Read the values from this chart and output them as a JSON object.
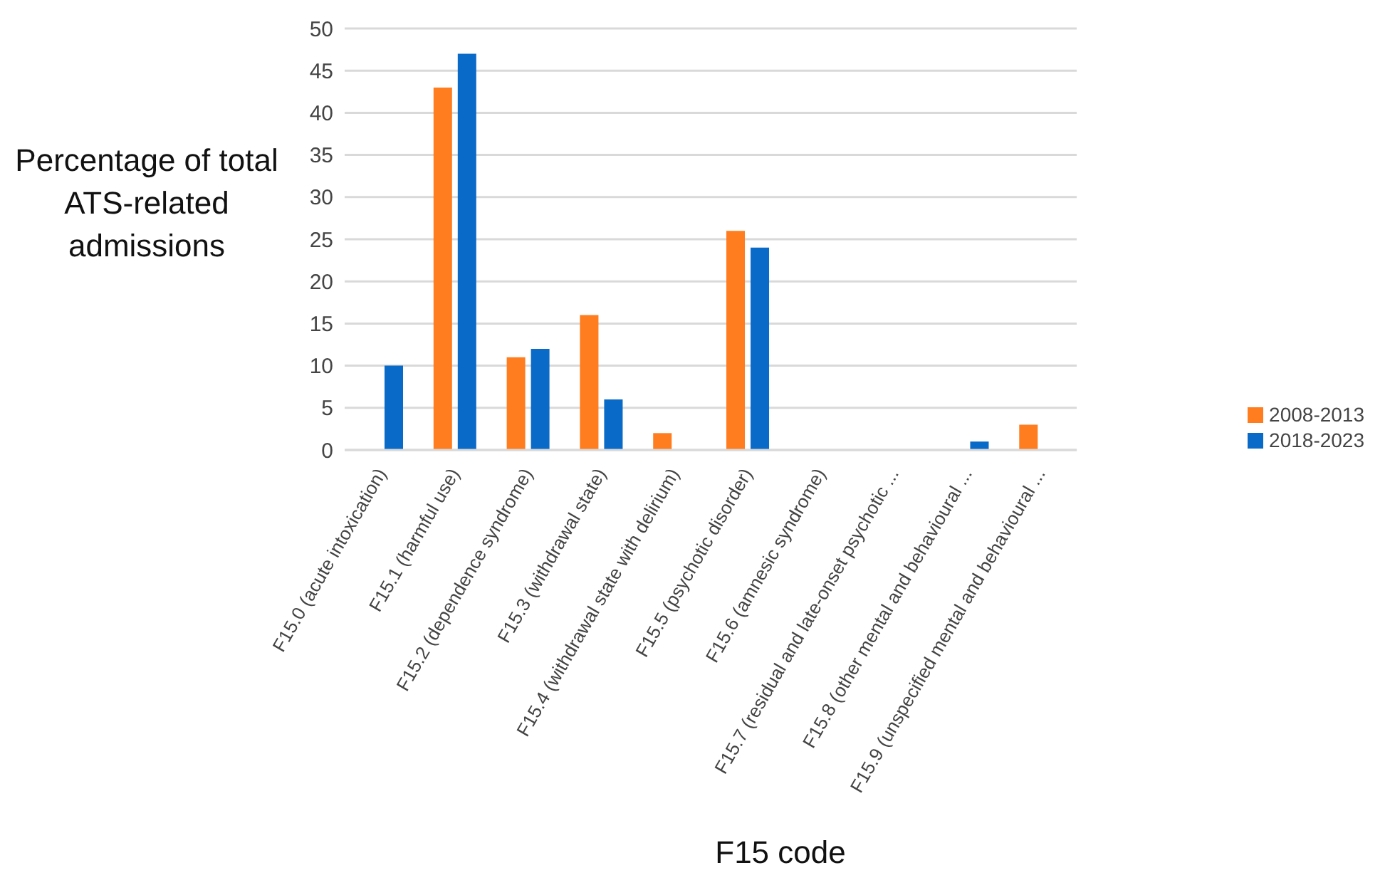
{
  "chart_data": {
    "type": "bar",
    "ylabel": "Percentage of total ATS-related admissions",
    "xlabel": "F15 code",
    "categories": [
      "F15.0 (acute intoxication)",
      "F15.1 (harmful use)",
      "F15.2 (dependence syndrome)",
      "F15.3 (withdrawal state)",
      "F15.4 (withdrawal state with delirium)",
      "F15.5 (psychotic disorder)",
      "F15.6 (amnesic syndrome)",
      "F15.7 (residual and late-onset psychotic ...",
      "F15.8 (other mental and behavioural ...",
      "F15.9 (unspecified mental and behavioural ..."
    ],
    "series": [
      {
        "name": "2008-2013",
        "color": "#ff7c1f",
        "values": [
          0,
          43,
          11,
          16,
          2,
          26,
          0,
          0,
          0,
          3
        ]
      },
      {
        "name": "2018-2023",
        "color": "#0a6ac8",
        "values": [
          10,
          47,
          12,
          6,
          0,
          24,
          0,
          0,
          1,
          0
        ]
      }
    ],
    "ylim": [
      0,
      50
    ],
    "yticks": [
      0,
      5,
      10,
      15,
      20,
      25,
      30,
      35,
      40,
      45,
      50
    ],
    "grid": "y",
    "legend": "right"
  }
}
